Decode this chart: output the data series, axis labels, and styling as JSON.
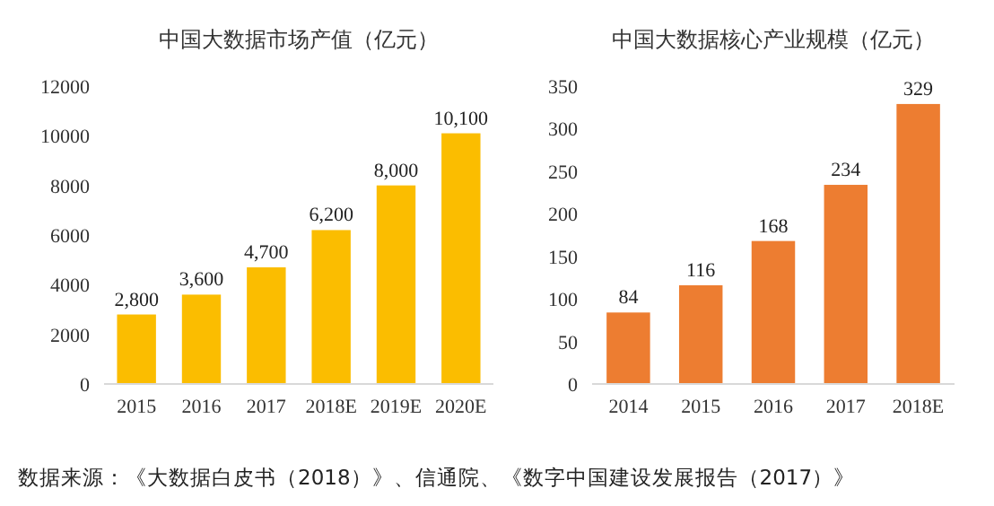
{
  "chart_data": [
    {
      "type": "bar",
      "title": "中国大数据市场产值（亿元）",
      "categories": [
        "2015",
        "2016",
        "2017",
        "2018E",
        "2019E",
        "2020E"
      ],
      "values": [
        2800,
        3600,
        4700,
        6200,
        8000,
        10100
      ],
      "value_labels": [
        "2,800",
        "3,600",
        "4,700",
        "6,200",
        "8,000",
        "10,100"
      ],
      "color": "#fbbd00",
      "ylim": [
        0,
        12000
      ],
      "yticks": [
        0,
        2000,
        4000,
        6000,
        8000,
        10000,
        12000
      ],
      "annotations": [
        "数据来源：《大数据白皮书（2018）》、信通院、《数字中国建设发展报告（2017）》"
      ]
    },
    {
      "type": "bar",
      "title": "中国大数据核心产业规模（亿元）",
      "categories": [
        "2014",
        "2015",
        "2016",
        "2017",
        "2018E"
      ],
      "values": [
        84,
        116,
        168,
        234,
        329
      ],
      "data_labels": true,
      "color": "#ed7d31",
      "ylim": [
        0,
        350
      ],
      "yticks": [
        0,
        50,
        100,
        150,
        200,
        250,
        300,
        350
      ]
    }
  ]
}
